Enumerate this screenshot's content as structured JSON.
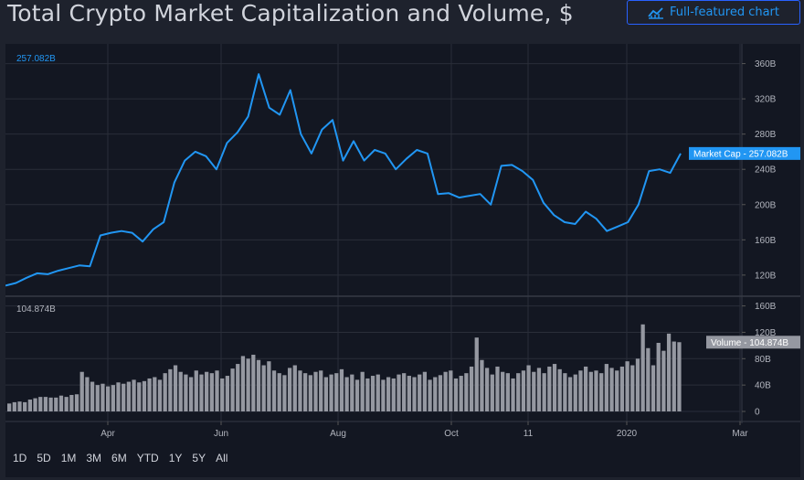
{
  "header": {
    "title": "Total Crypto Market Capitalization and Volume, $",
    "button_label": "Full-featured chart",
    "button_icon": "chart-line-icon"
  },
  "colors": {
    "background": "#131722",
    "page_background": "#1e222d",
    "grid": "#2a2e39",
    "market_cap_line": "#2196f3",
    "volume_bars": "#9598a1",
    "accent": "#2962ff"
  },
  "chart_data": [
    {
      "type": "line",
      "series": [
        {
          "name": "Market Cap",
          "values": [
            108,
            111,
            117,
            122,
            121,
            125,
            128,
            131,
            130,
            165,
            168,
            170,
            168,
            158,
            172,
            180,
            225,
            250,
            260,
            255,
            240,
            270,
            282,
            300,
            348,
            310,
            302,
            330,
            280,
            258,
            285,
            296,
            250,
            272,
            250,
            262,
            258,
            240,
            252,
            262,
            258,
            212,
            213,
            208,
            210,
            212,
            200,
            244,
            245,
            238,
            228,
            202,
            188,
            180,
            178,
            192,
            184,
            170,
            175,
            180,
            200,
            238,
            240,
            236,
            258
          ]
        }
      ],
      "x_labels": [
        "Apr",
        "Jun",
        "Aug",
        "Oct",
        "11",
        "2020",
        "Mar"
      ],
      "y_ticks": [
        "120B",
        "160B",
        "200B",
        "240B",
        "280B",
        "320B",
        "360B"
      ],
      "ylim": [
        96,
        372
      ],
      "last_value_label": "257.082B",
      "last_value_tag": "Market Cap - 257.082B"
    },
    {
      "type": "bar",
      "series": [
        {
          "name": "Volume",
          "values": [
            12,
            14,
            15,
            14,
            18,
            20,
            22,
            22,
            21,
            21,
            24,
            22,
            25,
            26,
            60,
            52,
            45,
            40,
            42,
            38,
            40,
            44,
            42,
            45,
            48,
            44,
            46,
            50,
            52,
            48,
            58,
            64,
            70,
            60,
            56,
            52,
            62,
            56,
            60,
            58,
            62,
            50,
            54,
            65,
            72,
            84,
            80,
            86,
            78,
            70,
            76,
            62,
            58,
            55,
            66,
            70,
            62,
            58,
            55,
            60,
            62,
            52,
            56,
            58,
            64,
            52,
            56,
            48,
            60,
            50,
            54,
            56,
            48,
            52,
            50,
            56,
            58,
            54,
            52,
            56,
            60,
            48,
            52,
            55,
            60,
            62,
            50,
            54,
            58,
            68,
            112,
            78,
            66,
            56,
            68,
            60,
            58,
            50,
            58,
            62,
            70,
            60,
            66,
            58,
            68,
            72,
            64,
            58,
            52,
            56,
            62,
            68,
            60,
            62,
            58,
            72,
            66,
            62,
            68,
            76,
            70,
            80,
            132,
            96,
            70,
            104,
            92,
            118,
            106,
            105
          ]
        }
      ],
      "y_ticks": [
        "0",
        "40B",
        "80B",
        "120B",
        "160B"
      ],
      "ylim": [
        0,
        165
      ],
      "last_value_label": "104.874B",
      "last_value_tag": "Volume - 104.874B"
    }
  ],
  "range_buttons": [
    "1D",
    "5D",
    "1M",
    "3M",
    "6M",
    "YTD",
    "1Y",
    "5Y",
    "All"
  ]
}
